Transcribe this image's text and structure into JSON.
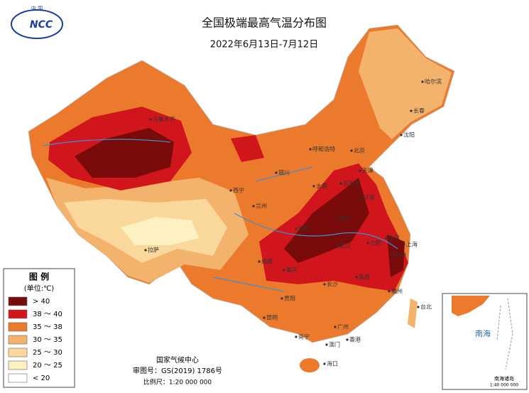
{
  "logo": {
    "text": "NCC",
    "subtext": "中 国"
  },
  "header": {
    "title": "全国极端最高气温分布图",
    "subtitle": "2022年6月13日-7月12日"
  },
  "legend": {
    "title": "图 例",
    "unit": "(单位:℃)",
    "items": [
      {
        "label": "> 40",
        "color": "#7a0b0b"
      },
      {
        "label": "38 ～ 40",
        "color": "#d0161c"
      },
      {
        "label": "35 ～ 38",
        "color": "#ec7a2c"
      },
      {
        "label": "30 ～ 35",
        "color": "#f4b36c"
      },
      {
        "label": "25 ～ 30",
        "color": "#fad79b"
      },
      {
        "label": "20 ～ 25",
        "color": "#fdf1c2"
      },
      {
        "label": "< 20",
        "color": "#ffffff"
      }
    ]
  },
  "cities": [
    "乌鲁木齐",
    "哈尔滨",
    "长春",
    "沈阳",
    "呼和浩特",
    "北京",
    "天津",
    "石家庄",
    "太原",
    "银川",
    "西宁",
    "兰州",
    "济南",
    "郑州",
    "西安",
    "合肥",
    "南京",
    "上海",
    "杭州",
    "武汉",
    "成都",
    "重庆",
    "长沙",
    "南昌",
    "福州",
    "拉萨",
    "贵阳",
    "昆明",
    "南宁",
    "广州",
    "香港",
    "澳门",
    "海口",
    "台北"
  ],
  "footer": {
    "agency": "国家气候中心",
    "approval": "审图号：GS(2019) 1786号",
    "scale": "比例尺：1:20 000 000"
  },
  "inset": {
    "sea": "南海",
    "islands": "南海诸岛",
    "scale": "1:40 000 000"
  }
}
